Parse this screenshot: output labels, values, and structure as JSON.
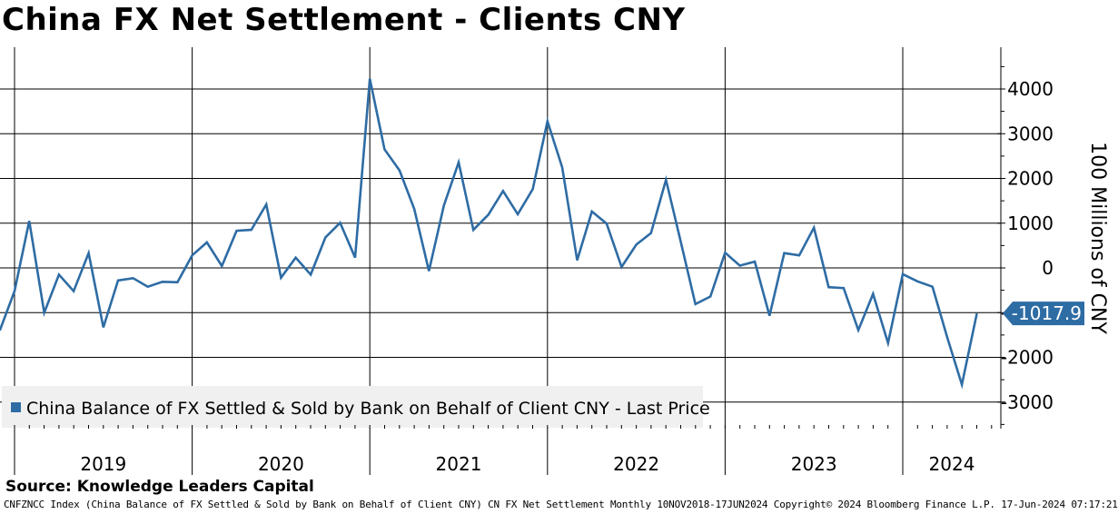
{
  "chart_title": "China FX Net Settlement - Clients CNY",
  "source": "Source: Knowledge Leaders Capital",
  "footer": "CNFZNCC Index (China Balance of FX Settled & Sold by Bank on Behalf of Client CNY) CN FX Net Settlement  Monthly 10NOV2018-17JUN2024  Copyright© 2024 Bloomberg Finance L.P.  17-Jun-2024 07:17:21",
  "colors": {
    "series": "#2e6ca4",
    "grid": "#000000",
    "legend_bg": "#f0f0f0",
    "label_bg": "#2e6ca4"
  },
  "chart_data": {
    "type": "line",
    "title": "China FX Net Settlement - Clients CNY",
    "ylabel": "100 Millions of CNY",
    "xlabel": "",
    "ylim": [
      -3600,
      4900
    ],
    "yticks": [
      -3000,
      -2000,
      -1000,
      0,
      1000,
      2000,
      3000,
      4000
    ],
    "ytick_labels": [
      "-3000",
      "-2000",
      "-1000",
      "0",
      "1000",
      "2000",
      "3000",
      "4000"
    ],
    "xlim": [
      2018.85,
      2024.55
    ],
    "year_labels": [
      "2019",
      "2020",
      "2021",
      "2022",
      "2023",
      "2024"
    ],
    "year_starts": [
      2019,
      2020,
      2021,
      2022,
      2023,
      2024
    ],
    "legend": "China Balance of FX Settled & Sold by Bank on Behalf of Client CNY - Last Price",
    "last_value_label": "-1017.9",
    "last_value": -1017.9,
    "series": [
      {
        "name": "China Balance of FX Settled & Sold by Bank on Behalf of Client CNY - Last Price",
        "x": [
          2018.917,
          2019.0,
          2019.083,
          2019.167,
          2019.25,
          2019.333,
          2019.417,
          2019.5,
          2019.583,
          2019.667,
          2019.75,
          2019.833,
          2019.917,
          2020.0,
          2020.083,
          2020.167,
          2020.25,
          2020.333,
          2020.417,
          2020.5,
          2020.583,
          2020.667,
          2020.75,
          2020.833,
          2020.917,
          2021.0,
          2021.083,
          2021.167,
          2021.25,
          2021.333,
          2021.417,
          2021.5,
          2021.583,
          2021.667,
          2021.75,
          2021.833,
          2021.917,
          2022.0,
          2022.083,
          2022.167,
          2022.25,
          2022.333,
          2022.417,
          2022.5,
          2022.583,
          2022.667,
          2022.75,
          2022.833,
          2022.917,
          2023.0,
          2023.083,
          2023.167,
          2023.25,
          2023.333,
          2023.417,
          2023.5,
          2023.583,
          2023.667,
          2023.75,
          2023.833,
          2023.917,
          2024.0,
          2024.083,
          2024.167,
          2024.25,
          2024.333,
          2024.417
        ],
        "values": [
          -1400,
          -520,
          1050,
          -1000,
          -150,
          -520,
          330,
          -1330,
          -280,
          -230,
          -420,
          -310,
          -320,
          280,
          570,
          40,
          830,
          850,
          1420,
          -220,
          230,
          -150,
          680,
          1010,
          230,
          4230,
          2650,
          2180,
          1320,
          -70,
          1400,
          2360,
          850,
          1190,
          1720,
          1200,
          1760,
          3280,
          2250,
          170,
          1260,
          990,
          20,
          520,
          780,
          1970,
          590,
          -810,
          -640,
          340,
          50,
          140,
          -1070,
          330,
          280,
          900,
          -430,
          -450,
          -1390,
          -580,
          -1680,
          -140,
          -300,
          -420,
          -1550,
          -2610,
          -1018
        ]
      }
    ]
  }
}
